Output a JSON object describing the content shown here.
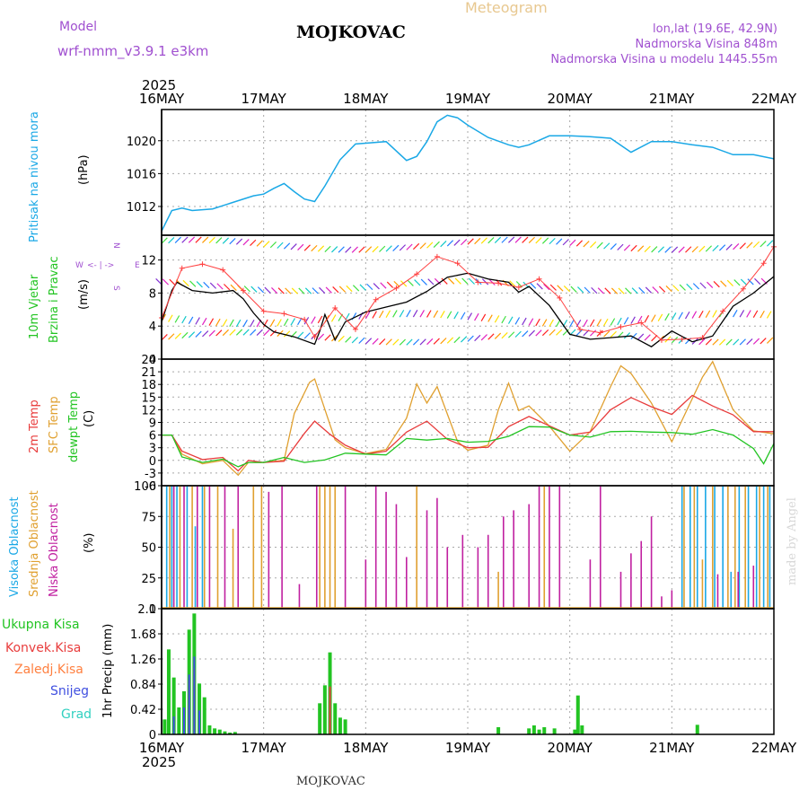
{
  "header": {
    "model_label": "Model",
    "model_name": "wrf-nmm_v3.9.1  e3km",
    "title": "MOJKOVAC",
    "meteogram": "Meteogram",
    "lonlat": "lon,lat (19.6E, 42.9N)",
    "altitude": "Nadmorska Visina 848m",
    "model_altitude": "Nadmorska Visina u modelu 1445.55m",
    "year_top": "2025",
    "year_bottom": "2025",
    "footer": "MOJKOVAC",
    "credit": "made by Angel"
  },
  "colors": {
    "pressure": "#1aa8e6",
    "wind_speed": "#000000",
    "gust": "#ff4040",
    "temp2m": "#e83c3c",
    "sfc_temp": "#e0a030",
    "dewpoint": "#22c422",
    "cloud_high": "#1aa8e6",
    "cloud_mid": "#e0a030",
    "cloud_low": "#c020a0",
    "precip_total": "#22c422",
    "precip_conv": "#e83c3c",
    "precip_frz": "#ff8040",
    "precip_snow": "#4050e0",
    "precip_hail": "#30d0c0"
  },
  "chart_data": [
    {
      "type": "line",
      "title": "Pritisak na nivou mora",
      "ylabel": "Pritisak na nivou mora",
      "unit": "(hPa)",
      "x_ticks": [
        "16MAY",
        "17MAY",
        "18MAY",
        "19MAY",
        "20MAY",
        "21MAY",
        "22MAY"
      ],
      "ylim": [
        1008.5,
        1023.8
      ],
      "yticks": [
        1012,
        1016,
        1020
      ],
      "series": [
        {
          "name": "pressure",
          "x": [
            0,
            0.1,
            0.2,
            0.3,
            0.5,
            0.7,
            0.9,
            1.0,
            1.1,
            1.2,
            1.3,
            1.4,
            1.5,
            1.6,
            1.75,
            1.9,
            2.0,
            2.2,
            2.4,
            2.5,
            2.6,
            2.7,
            2.8,
            2.9,
            3.0,
            3.2,
            3.4,
            3.5,
            3.6,
            3.8,
            4.0,
            4.2,
            4.4,
            4.6,
            4.8,
            5.0,
            5.2,
            5.4,
            5.6,
            5.8,
            6.0
          ],
          "values": [
            1009,
            1011.5,
            1011.8,
            1011.5,
            1011.7,
            1012.5,
            1013.3,
            1013.5,
            1014.2,
            1014.8,
            1013.8,
            1012.9,
            1012.6,
            1014.5,
            1017.7,
            1019.6,
            1019.7,
            1019.9,
            1017.6,
            1018.1,
            1019.9,
            1022.3,
            1023.1,
            1022.8,
            1021.9,
            1020.4,
            1019.5,
            1019.2,
            1019.5,
            1020.6,
            1020.6,
            1020.5,
            1020.3,
            1018.6,
            1019.9,
            1019.9,
            1019.5,
            1019.2,
            1018.3,
            1018.3,
            1017.8
          ]
        }
      ]
    },
    {
      "type": "line",
      "title": "10m Vjetar Brzina i Pravac",
      "ylabel": "10m Vjetar Brzina i Pravac",
      "unit": "(m/s)",
      "direction_labels": [
        "W",
        "<- | ->",
        "E",
        "N",
        "S"
      ],
      "ylim": [
        0,
        15
      ],
      "yticks": [
        0,
        4,
        8,
        12
      ],
      "series": [
        {
          "name": "wind speed",
          "x": [
            0,
            0.1,
            0.15,
            0.3,
            0.5,
            0.7,
            0.8,
            0.9,
            1.0,
            1.1,
            1.3,
            1.5,
            1.55,
            1.6,
            1.7,
            1.8,
            2.0,
            2.2,
            2.4,
            2.6,
            2.8,
            3.0,
            3.2,
            3.4,
            3.5,
            3.6,
            3.8,
            4.0,
            4.2,
            4.4,
            4.6,
            4.8,
            5.0,
            5.2,
            5.4,
            5.6,
            5.8,
            6.0
          ],
          "values": [
            4.5,
            8.3,
            9.3,
            8.3,
            8,
            8.3,
            7.3,
            5.6,
            4.2,
            3.3,
            2.7,
            1.8,
            3.4,
            5.4,
            2.3,
            4.5,
            5.7,
            6.3,
            6.9,
            8.2,
            9.9,
            10.4,
            9.7,
            9.3,
            8.1,
            8.8,
            6.5,
            3.0,
            2.4,
            2.6,
            2.8,
            1.5,
            3.4,
            2.1,
            2.8,
            6.4,
            8.0,
            10.0
          ]
        },
        {
          "name": "gust",
          "x": [
            0,
            0.2,
            0.4,
            0.6,
            0.8,
            1.0,
            1.2,
            1.4,
            1.5,
            1.7,
            1.9,
            2.1,
            2.3,
            2.5,
            2.7,
            2.9,
            3.1,
            3.3,
            3.5,
            3.7,
            3.9,
            4.1,
            4.3,
            4.5,
            4.7,
            4.9,
            5.1,
            5.3,
            5.5,
            5.7,
            5.9,
            6.0
          ],
          "values": [
            5,
            11,
            11.5,
            10.8,
            8.3,
            5.8,
            5.5,
            4.8,
            2.7,
            6.2,
            3.6,
            7.2,
            8.6,
            10.3,
            12.4,
            11.6,
            9.3,
            9.2,
            8.7,
            9.7,
            7.4,
            3.6,
            3.2,
            3.9,
            4.4,
            2.3,
            2.4,
            2.6,
            5.8,
            8.5,
            11.6,
            13.6
          ]
        }
      ]
    },
    {
      "type": "line",
      "title": "2m Temp / SFC Temp / dewpt Temp",
      "ylabel": "2m Temp, SFC Temp, dewpt Temp",
      "unit": "(C)",
      "ylim": [
        -6,
        24
      ],
      "yticks": [
        -6,
        -3,
        0,
        3,
        6,
        9,
        12,
        15,
        18,
        21,
        24
      ],
      "series": [
        {
          "name": "2m Temp",
          "x": [
            0,
            0.1,
            0.2,
            0.4,
            0.6,
            0.75,
            0.85,
            1.0,
            1.2,
            1.4,
            1.5,
            1.65,
            1.8,
            2.0,
            2.2,
            2.4,
            2.6,
            2.8,
            3.0,
            3.2,
            3.4,
            3.6,
            3.8,
            4.0,
            4.2,
            4.4,
            4.6,
            4.8,
            5.0,
            5.2,
            5.4,
            5.6,
            5.8,
            6.0
          ],
          "values": [
            6,
            6,
            2.2,
            0.2,
            0.7,
            -2.5,
            0,
            -0.5,
            -0.2,
            6.4,
            9.3,
            6.2,
            3.6,
            1.5,
            2.2,
            6.7,
            9.3,
            5.0,
            3.0,
            3.1,
            8.0,
            10.4,
            8.2,
            6.0,
            6.7,
            12.0,
            14.9,
            12.7,
            10.9,
            15.4,
            12.9,
            10.8,
            6.8,
            6.8
          ]
        },
        {
          "name": "SFC Temp",
          "x": [
            0,
            0.1,
            0.2,
            0.4,
            0.6,
            0.75,
            0.85,
            1.0,
            1.2,
            1.3,
            1.45,
            1.5,
            1.7,
            1.8,
            2.0,
            2.2,
            2.4,
            2.5,
            2.6,
            2.7,
            2.9,
            3.0,
            3.2,
            3.3,
            3.4,
            3.5,
            3.6,
            3.8,
            4.0,
            4.2,
            4.4,
            4.5,
            4.6,
            4.8,
            5.0,
            5.3,
            5.4,
            5.6,
            5.8,
            6.0
          ],
          "values": [
            6,
            6,
            1.5,
            -0.8,
            0,
            -3.5,
            -0.5,
            -0.5,
            0,
            11.1,
            18.5,
            19.3,
            4.9,
            3.0,
            1.6,
            2.6,
            10.0,
            18.1,
            13.6,
            17.5,
            4.5,
            2.4,
            3.6,
            12.0,
            18.3,
            11.8,
            12.9,
            8.1,
            2.2,
            6.8,
            17.5,
            22.4,
            20.6,
            13.6,
            4.4,
            19.7,
            23.4,
            12.0,
            7.0,
            6.3
          ]
        },
        {
          "name": "dewpt Temp",
          "x": [
            0,
            0.1,
            0.2,
            0.4,
            0.6,
            0.75,
            0.85,
            1.0,
            1.2,
            1.4,
            1.6,
            1.8,
            2.0,
            2.2,
            2.4,
            2.6,
            2.8,
            3.0,
            3.2,
            3.4,
            3.6,
            3.8,
            4.0,
            4.2,
            4.4,
            4.6,
            4.8,
            5.0,
            5.2,
            5.4,
            5.6,
            5.8,
            5.9,
            6.0
          ],
          "values": [
            6,
            6,
            0.8,
            -0.5,
            0.3,
            -1.5,
            -0.5,
            -0.5,
            0.7,
            -0.5,
            0.1,
            1.7,
            1.5,
            1.3,
            5.2,
            4.8,
            5.2,
            4.3,
            4.5,
            5.7,
            8.0,
            7.9,
            6.0,
            5.5,
            6.8,
            6.9,
            6.7,
            6.6,
            6.2,
            7.3,
            6.0,
            2.8,
            -0.8,
            4.0
          ]
        }
      ]
    },
    {
      "type": "bar",
      "title": "Oblacnost",
      "ylabel": "Visoka Oblacnost, Srednja Oblacnost, Niska Oblacnost",
      "unit": "(%)",
      "ylim": [
        0,
        100
      ],
      "yticks": [
        0,
        25,
        50,
        75,
        100
      ],
      "series": [
        {
          "name": "Visoka Oblacnost",
          "x": [
            0.05,
            0.1,
            0.15,
            0.25,
            0.33,
            0.4,
            5.1,
            5.18,
            5.25,
            5.33,
            5.42,
            5.5,
            5.58,
            5.66,
            5.75,
            5.83,
            5.9,
            5.96
          ],
          "values": [
            100,
            100,
            100,
            100,
            67,
            100,
            100,
            100,
            100,
            100,
            100,
            100,
            30,
            100,
            100,
            100,
            100,
            100
          ]
        },
        {
          "name": "Srednja Oblacnost",
          "x": [
            0.08,
            0.18,
            0.3,
            0.42,
            0.55,
            0.7,
            0.9,
            0.98,
            1.55,
            1.6,
            1.65,
            1.7,
            2.5,
            3.3,
            3.75,
            5.12,
            5.22,
            5.3,
            5.4,
            5.55,
            5.62,
            5.72,
            5.86,
            5.94
          ],
          "values": [
            100,
            100,
            100,
            100,
            100,
            65,
            100,
            100,
            100,
            100,
            100,
            100,
            100,
            30,
            100,
            100,
            100,
            40,
            100,
            100,
            100,
            100,
            100,
            100
          ]
        },
        {
          "name": "Niska Oblacnost",
          "x": [
            0.12,
            0.22,
            0.35,
            0.47,
            0.62,
            0.75,
            1.05,
            1.18,
            1.35,
            1.52,
            1.8,
            2.0,
            2.1,
            2.2,
            2.3,
            2.4,
            2.6,
            2.7,
            2.8,
            2.95,
            3.1,
            3.2,
            3.35,
            3.45,
            3.6,
            3.7,
            3.8,
            3.9,
            4.2,
            4.3,
            4.5,
            4.6,
            4.7,
            4.8,
            4.9,
            5.0,
            5.45,
            5.65,
            5.8
          ],
          "values": [
            100,
            100,
            100,
            100,
            100,
            100,
            95,
            100,
            20,
            100,
            100,
            40,
            100,
            95,
            85,
            42,
            80,
            90,
            50,
            60,
            50,
            60,
            75,
            80,
            85,
            100,
            100,
            100,
            40,
            100,
            30,
            45,
            55,
            75,
            10,
            15,
            28,
            30,
            35
          ]
        }
      ]
    },
    {
      "type": "bar",
      "title": "1hr Precip",
      "ylabel": "1hr Precip",
      "unit": "(mm)",
      "ylim": [
        0,
        2.1
      ],
      "yticks": [
        0,
        0.42,
        0.84,
        1.26,
        1.68,
        2.1
      ],
      "legend": [
        "Ukupna Kisa",
        "Konvek.Kisa",
        "Zaledj.Kisa",
        "Snijeg",
        "Grad"
      ],
      "series": [
        {
          "name": "Ukupna Kisa",
          "x": [
            0.03,
            0.07,
            0.12,
            0.17,
            0.22,
            0.27,
            0.32,
            0.37,
            0.42,
            0.47,
            0.52,
            0.57,
            0.62,
            0.67,
            0.72,
            1.55,
            1.6,
            1.65,
            1.7,
            1.75,
            1.8,
            3.3,
            3.6,
            3.65,
            3.7,
            3.75,
            3.85,
            4.05,
            4.08,
            4.12,
            5.25
          ],
          "values": [
            0.25,
            1.42,
            0.95,
            0.45,
            0.72,
            1.75,
            2.02,
            0.85,
            0.62,
            0.15,
            0.1,
            0.08,
            0.05,
            0.03,
            0.04,
            0.52,
            0.82,
            1.37,
            0.52,
            0.28,
            0.25,
            0.12,
            0.1,
            0.15,
            0.08,
            0.12,
            0.1,
            0.08,
            0.65,
            0.15,
            0.16
          ]
        },
        {
          "name": "Konvek.Kisa",
          "x": [
            0.27,
            0.32,
            1.65
          ],
          "values": [
            0.9,
            1.1,
            0.8
          ]
        },
        {
          "name": "Snijeg",
          "x": [
            0.12,
            0.22,
            0.27,
            0.32,
            0.37
          ],
          "values": [
            0.3,
            0.45,
            1.0,
            1.3,
            0.4
          ]
        }
      ]
    }
  ]
}
